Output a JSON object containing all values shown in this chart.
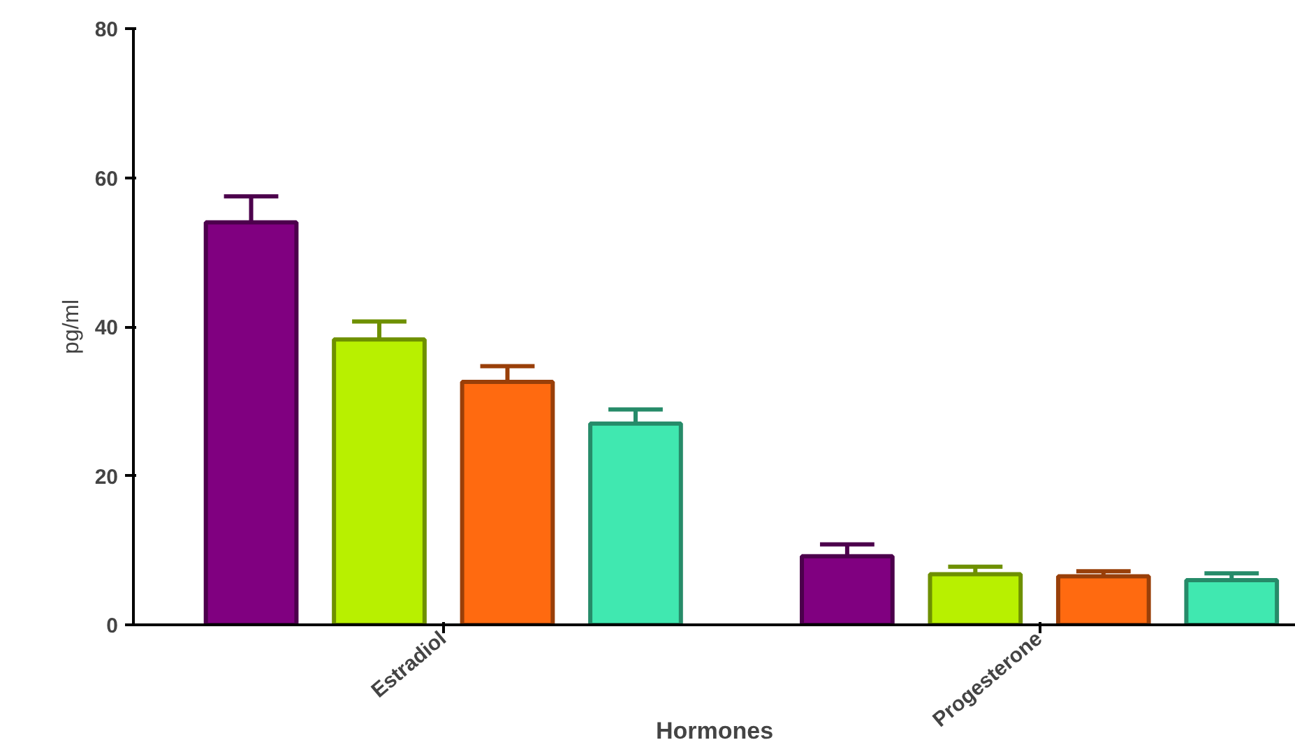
{
  "chart_data": {
    "type": "bar",
    "xlabel": "Hormones",
    "ylabel": "pg/ml",
    "categories": [
      "Estradiol",
      "Progesterone"
    ],
    "ylim": [
      0,
      80
    ],
    "yticks": [
      0,
      20,
      40,
      60,
      80
    ],
    "grid": false,
    "series": [
      {
        "color": "#800080",
        "values": [
          54.0,
          9.2
        ],
        "errors": [
          [
            54.0,
            57.5
          ],
          [
            9.2,
            10.8
          ]
        ]
      },
      {
        "color": "#b8f000",
        "values": [
          38.3,
          6.8
        ],
        "errors": [
          [
            38.3,
            40.7
          ],
          [
            6.8,
            7.8
          ]
        ]
      },
      {
        "color": "#ff6a10",
        "values": [
          32.6,
          6.5
        ],
        "errors": [
          [
            32.6,
            34.7
          ],
          [
            6.5,
            7.2
          ]
        ]
      },
      {
        "color": "#40e8b0",
        "values": [
          27.0,
          6.0
        ],
        "errors": [
          [
            27.0,
            28.9
          ],
          [
            6.0,
            6.9
          ]
        ]
      }
    ]
  }
}
